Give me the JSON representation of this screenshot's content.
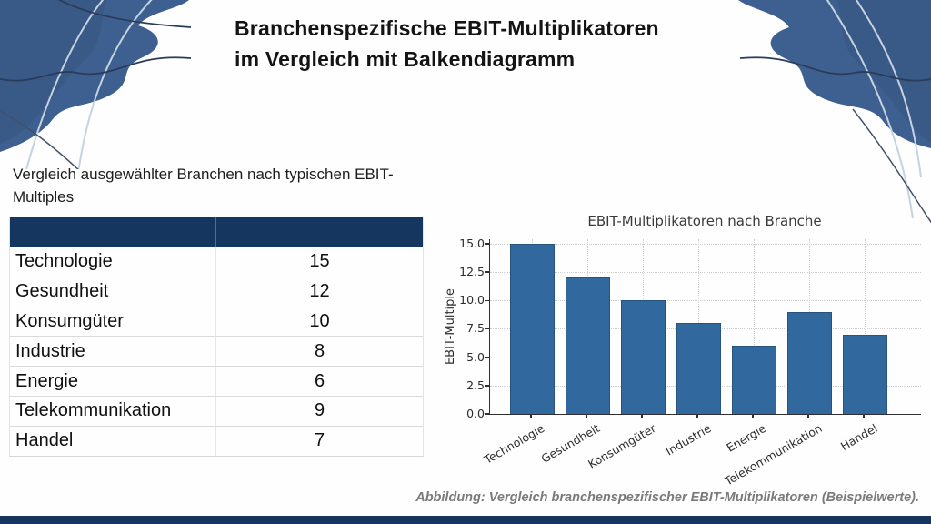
{
  "slide": {
    "title_line1": "Branchenspezifische EBIT-Multiplikatoren",
    "title_line2": "im Vergleich mit Balkendiagramm",
    "subtitle": "Vergleich ausgewählter Branchen nach typischen EBIT-Multiples",
    "caption": "Abbildung: Vergleich branchenspezifischer EBIT-Multiplikatoren (Beispielwerte)."
  },
  "table": {
    "header": [
      "",
      ""
    ],
    "rows": [
      [
        "Technologie",
        "15"
      ],
      [
        "Gesundheit",
        "12"
      ],
      [
        "Konsumgüter",
        "10"
      ],
      [
        "Industrie",
        "8"
      ],
      [
        "Energie",
        "6"
      ],
      [
        "Telekommunikation",
        "9"
      ],
      [
        "Handel",
        "7"
      ]
    ]
  },
  "chart_data": {
    "type": "bar",
    "title": "EBIT-Multiplikatoren nach Branche",
    "categories": [
      "Technologie",
      "Gesundheit",
      "Konsumgüter",
      "Industrie",
      "Energie",
      "Telekommunikation",
      "Handel"
    ],
    "values": [
      15,
      12,
      10,
      8,
      6,
      9,
      7
    ],
    "xlabel": "",
    "ylabel": "EBIT-Multiple",
    "ylim": [
      0,
      15.4
    ],
    "yticks": [
      0,
      2.5,
      5,
      7.5,
      10,
      12.5,
      15
    ],
    "grid": true,
    "grid_style": "dotted",
    "legend": false,
    "bar_color": "#31699e",
    "xlabel_rotation_deg": 30
  },
  "colors": {
    "accent_navy": "#14365f",
    "deco_blue": "#3e6090",
    "deco_dark_blue": "#33517b",
    "table_border": "#d6d6d6",
    "chart_text": "#3a3a3a",
    "caption_gray": "#7a7a7a"
  }
}
